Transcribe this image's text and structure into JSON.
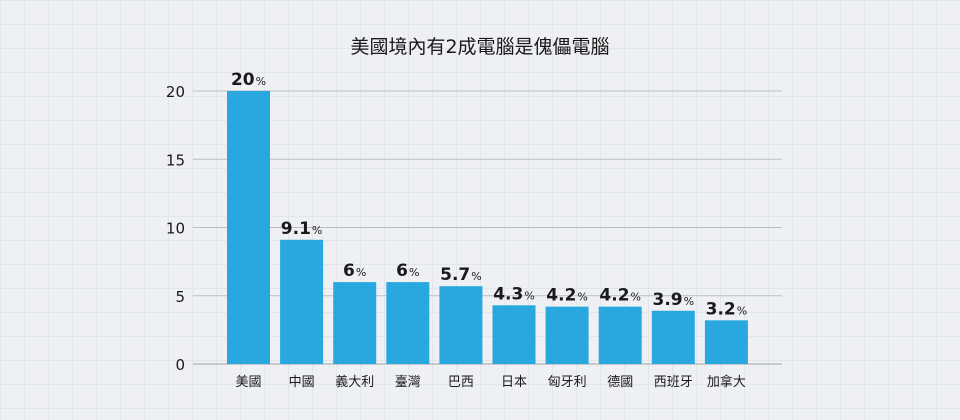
{
  "chart_data": {
    "type": "bar",
    "title": "美國境內有2成電腦是傀儡電腦",
    "xlabel": "",
    "ylabel": "",
    "categories": [
      "美國",
      "中國",
      "義大利",
      "臺灣",
      "巴西",
      "日本",
      "匈牙利",
      "德國",
      "西班牙",
      "加拿大"
    ],
    "values": [
      20,
      9.1,
      6,
      6,
      5.7,
      4.3,
      4.2,
      4.2,
      3.9,
      3.2
    ],
    "data_labels": [
      "20",
      "9.1",
      "6",
      "6",
      "5.7",
      "4.3",
      "4.2",
      "4.2",
      "3.9",
      "3.2"
    ],
    "value_suffix": "%",
    "ylim": [
      0,
      20
    ],
    "y_ticks": [
      0,
      5,
      10,
      15,
      20
    ],
    "y_tick_labels": [
      "0",
      "5",
      "10",
      "15",
      "20"
    ],
    "grid": true,
    "legend": "none",
    "bar_color": "#29a8e0",
    "grid_color": "#b9bec6",
    "label_color": "#1a1a1a"
  }
}
